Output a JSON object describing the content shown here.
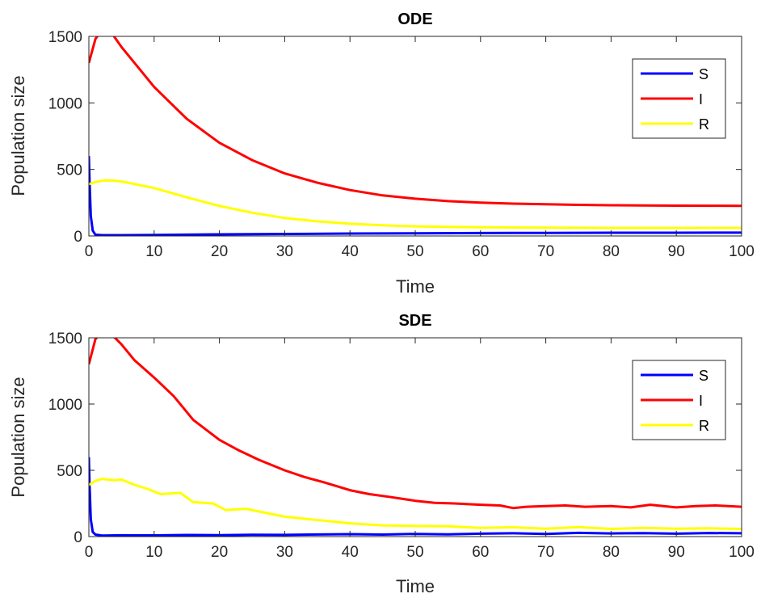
{
  "colors": {
    "S": "#0000ff",
    "I": "#ff0000",
    "R": "#ffff00",
    "axis": "#262626"
  },
  "chart_data": [
    {
      "type": "line",
      "title": "ODE",
      "xlabel": "Time",
      "ylabel": "Population size",
      "xlim": [
        0,
        100
      ],
      "ylim": [
        0,
        1500
      ],
      "xticks": [
        "0",
        "10",
        "20",
        "30",
        "40",
        "50",
        "60",
        "70",
        "80",
        "90",
        "100"
      ],
      "yticks": [
        "0",
        "500",
        "1000",
        "1500"
      ],
      "grid": false,
      "legend": {
        "position": "top-right",
        "entries": [
          "S",
          "I",
          "R"
        ]
      },
      "series": [
        {
          "name": "S",
          "color": "#0000ff",
          "x": [
            0,
            0.1,
            0.3,
            0.6,
            1,
            2,
            5,
            10,
            20,
            30,
            40,
            50,
            60,
            70,
            80,
            90,
            100
          ],
          "y": [
            600,
            420,
            150,
            40,
            10,
            6,
            6,
            8,
            12,
            15,
            18,
            20,
            22,
            23,
            24,
            24,
            25
          ]
        },
        {
          "name": "I",
          "color": "#ff0000",
          "x": [
            0,
            1,
            2,
            3,
            4,
            5,
            10,
            15,
            20,
            25,
            30,
            35,
            40,
            45,
            50,
            55,
            60,
            65,
            70,
            75,
            80,
            85,
            90,
            95,
            100
          ],
          "y": [
            1300,
            1480,
            1550,
            1560,
            1490,
            1420,
            1120,
            880,
            700,
            570,
            470,
            400,
            345,
            305,
            280,
            262,
            250,
            243,
            238,
            234,
            231,
            229,
            228,
            227,
            226
          ]
        },
        {
          "name": "R",
          "color": "#ffff00",
          "x": [
            0,
            1,
            2,
            3,
            4,
            5,
            10,
            15,
            20,
            25,
            30,
            35,
            40,
            45,
            50,
            55,
            60,
            70,
            80,
            90,
            100
          ],
          "y": [
            390,
            405,
            415,
            418,
            415,
            410,
            360,
            290,
            225,
            175,
            135,
            110,
            92,
            80,
            72,
            68,
            65,
            62,
            60,
            60,
            60
          ]
        }
      ]
    },
    {
      "type": "line",
      "title": "SDE",
      "xlabel": "Time",
      "ylabel": "Population size",
      "xlim": [
        0,
        100
      ],
      "ylim": [
        0,
        1500
      ],
      "xticks": [
        "0",
        "10",
        "20",
        "30",
        "40",
        "50",
        "60",
        "70",
        "80",
        "90",
        "100"
      ],
      "yticks": [
        "0",
        "500",
        "1000",
        "1500"
      ],
      "grid": false,
      "legend": {
        "position": "top-right",
        "entries": [
          "S",
          "I",
          "R"
        ]
      },
      "series": [
        {
          "name": "S",
          "color": "#0000ff",
          "x": [
            0,
            0.1,
            0.3,
            0.6,
            1,
            2,
            5,
            10,
            15,
            20,
            25,
            30,
            35,
            40,
            45,
            50,
            55,
            60,
            65,
            70,
            75,
            80,
            85,
            90,
            95,
            100
          ],
          "y": [
            600,
            400,
            130,
            35,
            15,
            8,
            10,
            9,
            12,
            11,
            14,
            13,
            16,
            18,
            15,
            20,
            17,
            22,
            25,
            20,
            28,
            24,
            26,
            22,
            27,
            25
          ]
        },
        {
          "name": "I",
          "color": "#ff0000",
          "x": [
            0,
            1,
            2,
            3,
            4,
            5,
            7,
            10,
            13,
            16,
            20,
            23,
            26,
            30,
            33,
            36,
            40,
            43,
            46,
            50,
            53,
            56,
            60,
            63,
            65,
            67,
            70,
            73,
            76,
            80,
            83,
            86,
            90,
            93,
            96,
            100
          ],
          "y": [
            1300,
            1490,
            1540,
            1530,
            1500,
            1450,
            1330,
            1200,
            1060,
            880,
            730,
            650,
            580,
            500,
            450,
            410,
            350,
            320,
            300,
            270,
            255,
            250,
            240,
            235,
            215,
            225,
            230,
            235,
            225,
            230,
            220,
            240,
            220,
            230,
            235,
            225
          ]
        },
        {
          "name": "R",
          "color": "#ffff00",
          "x": [
            0,
            1,
            2,
            4,
            5,
            7,
            9,
            11,
            14,
            16,
            19,
            21,
            24,
            27,
            30,
            33,
            36,
            40,
            45,
            50,
            55,
            60,
            65,
            70,
            75,
            80,
            85,
            90,
            95,
            100
          ],
          "y": [
            390,
            420,
            435,
            425,
            430,
            390,
            360,
            320,
            330,
            260,
            250,
            200,
            210,
            180,
            150,
            135,
            120,
            100,
            85,
            80,
            78,
            65,
            70,
            60,
            72,
            58,
            65,
            60,
            62,
            58
          ]
        }
      ]
    }
  ]
}
